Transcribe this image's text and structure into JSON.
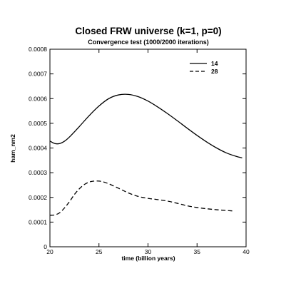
{
  "chart_data": {
    "type": "line",
    "title": "Closed FRW  universe (k=1, p=0)",
    "subtitle": "Convergence test (1000/2000 iterations)",
    "xlabel": "time (billion years)",
    "ylabel": "ham_nm2",
    "xlim": [
      20,
      40
    ],
    "ylim": [
      0,
      0.0008
    ],
    "xticks": [
      20,
      25,
      30,
      35,
      40
    ],
    "xtick_labels": [
      "20",
      "25",
      "30",
      "35",
      "40"
    ],
    "yticks": [
      0,
      0.0001,
      0.0002,
      0.0003,
      0.0004,
      0.0005,
      0.0006,
      0.0007,
      0.0008
    ],
    "ytick_labels": [
      "0",
      "0.0001",
      "0.0002",
      "0.0003",
      "0.0004",
      "0.0005",
      "0.0006",
      "0.0007",
      "0.0008"
    ],
    "legend_position": "top-right",
    "grid": false,
    "series": [
      {
        "name": "14",
        "style": "solid",
        "x": [
          20.0,
          20.5,
          21.0,
          21.5,
          22.0,
          23.0,
          24.0,
          25.0,
          26.0,
          27.0,
          28.0,
          29.0,
          30.0,
          31.0,
          32.0,
          33.0,
          34.0,
          35.0,
          36.0,
          37.0,
          38.0,
          39.0,
          39.6
        ],
        "y": [
          0.000428,
          0.000418,
          0.000418,
          0.000428,
          0.000445,
          0.000487,
          0.000531,
          0.00057,
          0.0006,
          0.000615,
          0.000617,
          0.000608,
          0.00059,
          0.000566,
          0.000539,
          0.00051,
          0.00048,
          0.000451,
          0.000424,
          0.0004,
          0.00038,
          0.000366,
          0.00036
        ]
      },
      {
        "name": "28",
        "style": "dashed",
        "x": [
          20.0,
          20.5,
          21.0,
          21.5,
          22.0,
          22.5,
          23.0,
          23.5,
          24.0,
          24.5,
          25.0,
          25.5,
          26.0,
          27.0,
          28.0,
          29.0,
          30.0,
          31.0,
          32.0,
          33.0,
          34.0,
          35.0,
          36.0,
          37.0,
          38.0,
          38.7
        ],
        "y": [
          0.000128,
          0.000129,
          0.000138,
          0.000158,
          0.000183,
          0.000212,
          0.000235,
          0.000252,
          0.000262,
          0.000266,
          0.000266,
          0.000262,
          0.000255,
          0.000237,
          0.000218,
          0.000204,
          0.000196,
          0.000191,
          0.000185,
          0.000176,
          0.000166,
          0.000159,
          0.000154,
          0.00015,
          0.000147,
          0.000145
        ]
      }
    ]
  }
}
